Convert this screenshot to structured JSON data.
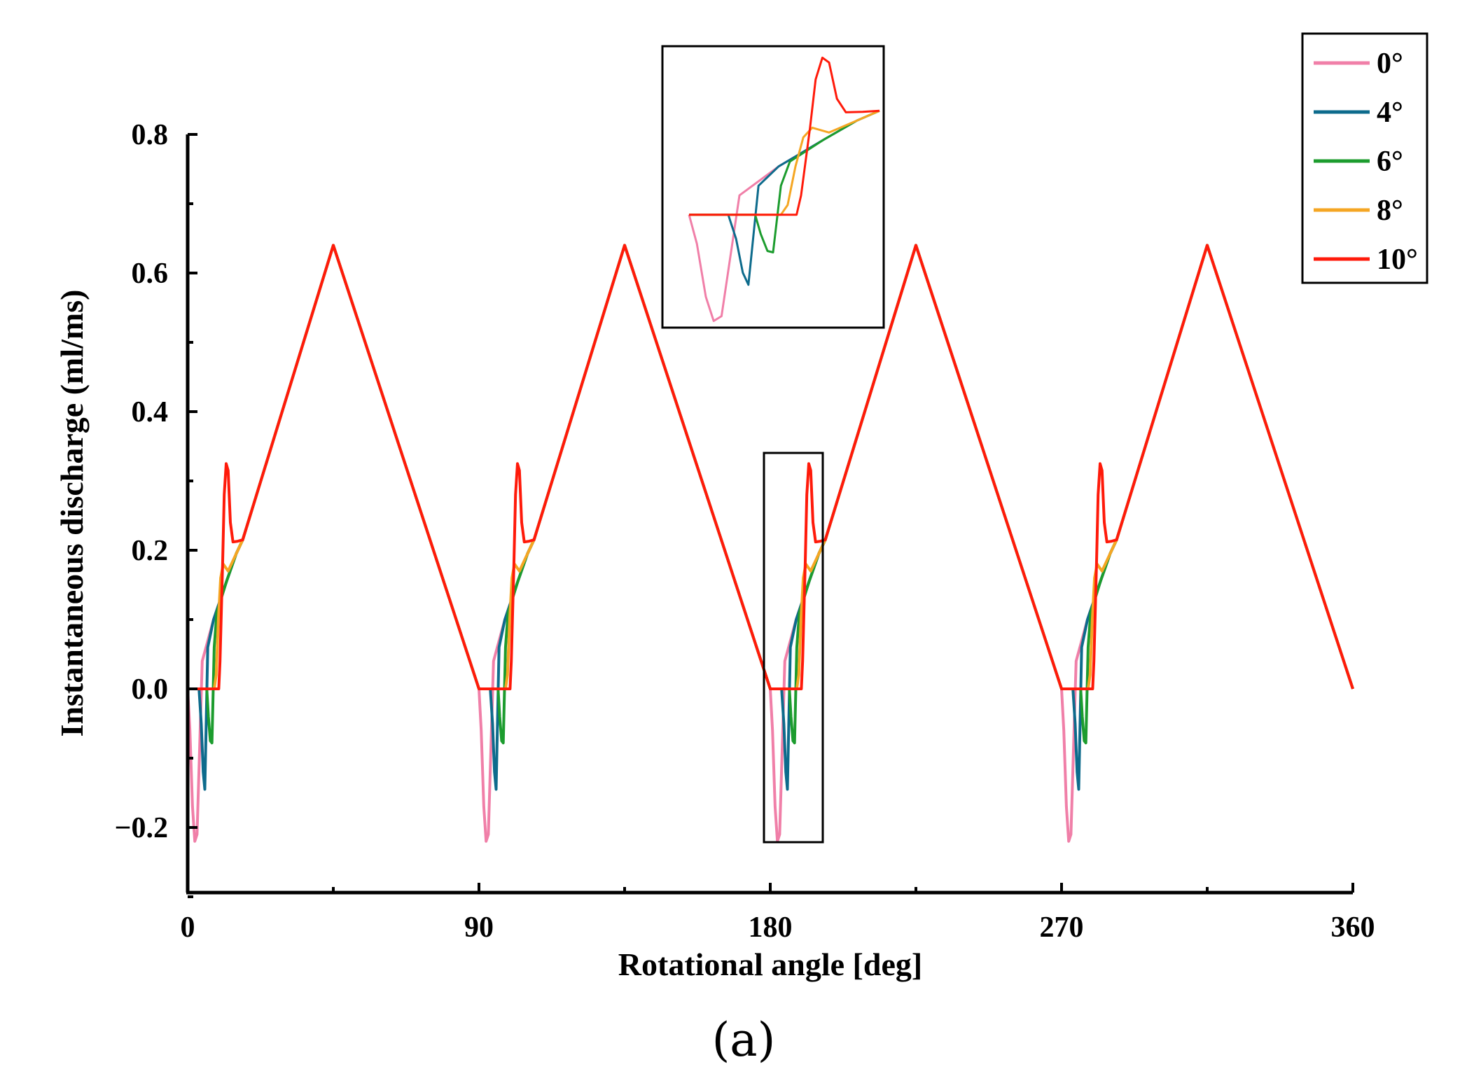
{
  "chart_data": {
    "type": "line",
    "title": "",
    "caption": "(a)",
    "xlabel": "Rotational angle [deg]",
    "ylabel": "Instantaneous discharge (ml/ms)",
    "xlim": [
      0,
      360
    ],
    "ylim": [
      -0.3,
      0.8
    ],
    "xticks": [
      0,
      90,
      180,
      270,
      360
    ],
    "xtick_labels": [
      "0",
      "90",
      "180",
      "270",
      "360"
    ],
    "yticks": [
      -0.2,
      0.0,
      0.2,
      0.4,
      0.6,
      0.8
    ],
    "ytick_labels": [
      "−0.2",
      "0.0",
      "0.2",
      "0.4",
      "0.6",
      "0.8"
    ],
    "grid": false,
    "legend_position": "top-right",
    "period_deg": 90,
    "periods": 4,
    "series": [
      {
        "name": "0°",
        "color": "#f07fa8",
        "x": [
          0,
          0.7,
          1.5,
          2.2,
          2.9,
          4.5,
          8,
          12,
          15,
          17,
          45,
          90
        ],
        "y": [
          0.0,
          -0.06,
          -0.17,
          -0.22,
          -0.21,
          0.04,
          0.1,
          0.155,
          0.195,
          0.215,
          0.64,
          0.0
        ]
      },
      {
        "name": "4°",
        "color": "#0d6b8c",
        "x": [
          0,
          3.5,
          4.2,
          4.8,
          5.3,
          6.2,
          8,
          12,
          15,
          17,
          45,
          90
        ],
        "y": [
          0.0,
          0.0,
          -0.05,
          -0.12,
          -0.145,
          0.06,
          0.1,
          0.155,
          0.195,
          0.215,
          0.64,
          0.0
        ]
      },
      {
        "name": "6°",
        "color": "#1c9c2e",
        "x": [
          0,
          5.9,
          6.4,
          7.0,
          7.5,
          8.2,
          9.0,
          12,
          15,
          17,
          45,
          90
        ],
        "y": [
          0.0,
          0.0,
          -0.04,
          -0.075,
          -0.078,
          0.06,
          0.11,
          0.155,
          0.195,
          0.215,
          0.64,
          0.0
        ]
      },
      {
        "name": "8°",
        "color": "#f5a623",
        "x": [
          0,
          8.2,
          8.8,
          9.5,
          10.2,
          11.0,
          12.5,
          15,
          17,
          45,
          90
        ],
        "y": [
          0.0,
          0.0,
          0.02,
          0.1,
          0.16,
          0.18,
          0.17,
          0.195,
          0.215,
          0.64,
          0.0
        ]
      },
      {
        "name": "10°",
        "color": "#ff1a0a",
        "x": [
          0,
          9.6,
          10.0,
          10.8,
          11.3,
          11.9,
          12.5,
          13.2,
          14.0,
          15.5,
          17,
          45,
          90
        ],
        "y": [
          0.0,
          0.0,
          0.04,
          0.18,
          0.28,
          0.325,
          0.315,
          0.24,
          0.212,
          0.213,
          0.215,
          0.64,
          0.0
        ]
      }
    ],
    "annotations": [
      {
        "type": "highlight-box",
        "x_range": [
          178,
          197
        ],
        "y_range": [
          -0.225,
          0.34
        ]
      },
      {
        "type": "inset-zoom",
        "of": "highlight-box",
        "x_range": [
          178,
          197
        ],
        "y_range": [
          -0.225,
          0.34
        ]
      }
    ]
  }
}
